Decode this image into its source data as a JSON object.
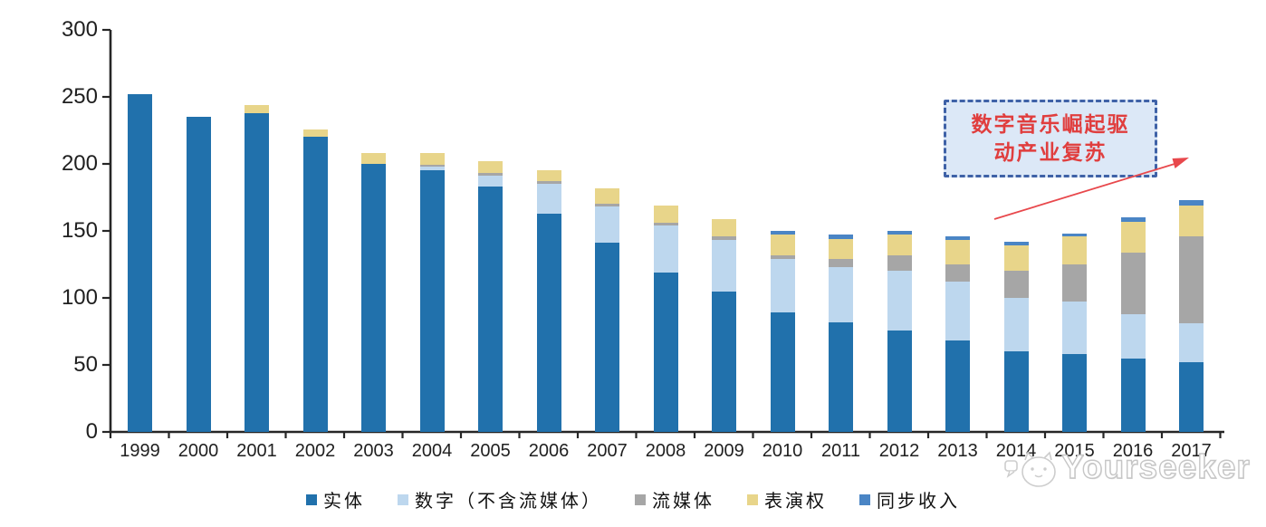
{
  "chart_data": {
    "type": "bar",
    "stacked": true,
    "title": "",
    "xlabel": "",
    "ylabel": "",
    "ylim": [
      0,
      300
    ],
    "yticks": [
      0,
      50,
      100,
      150,
      200,
      250,
      300
    ],
    "grid": false,
    "legend_position": "bottom",
    "categories": [
      "1999",
      "2000",
      "2001",
      "2002",
      "2003",
      "2004",
      "2005",
      "2006",
      "2007",
      "2008",
      "2009",
      "2010",
      "2011",
      "2012",
      "2013",
      "2014",
      "2015",
      "2016",
      "2017"
    ],
    "series": [
      {
        "name": "实体",
        "color": "#2171AC",
        "values": [
          252,
          235,
          238,
          220,
          200,
          195,
          183,
          163,
          141,
          119,
          105,
          89,
          82,
          76,
          68,
          60,
          58,
          55,
          52
        ]
      },
      {
        "name": "数字（不含流媒体）",
        "color": "#BDD7EE",
        "values": [
          0,
          0,
          0,
          0,
          0,
          3,
          8,
          22,
          27,
          35,
          38,
          40,
          41,
          44,
          44,
          40,
          39,
          33,
          29
        ]
      },
      {
        "name": "流媒体",
        "color": "#A6A6A6",
        "values": [
          0,
          0,
          0,
          0,
          0,
          1,
          2,
          2,
          2,
          2,
          3,
          3,
          6,
          12,
          13,
          20,
          28,
          46,
          65
        ]
      },
      {
        "name": "表演权",
        "color": "#E8D58A",
        "values": [
          0,
          0,
          6,
          6,
          8,
          9,
          9,
          8,
          12,
          13,
          13,
          15,
          15,
          15,
          18,
          19,
          21,
          23,
          23
        ]
      },
      {
        "name": "同步收入",
        "color": "#4A85C5",
        "values": [
          0,
          0,
          0,
          0,
          0,
          0,
          0,
          0,
          0,
          0,
          0,
          3,
          3,
          3,
          3,
          3,
          2,
          3,
          4
        ]
      }
    ]
  },
  "annotation": {
    "line1": "数字音乐崛起驱",
    "line2": "动产业复苏",
    "text_color": "#E03E3E",
    "box_fill": "#DCE8F7",
    "border_color": "#3F62A7",
    "arrow_color": "#E8484C"
  },
  "watermark": {
    "brand": "Yourseeker"
  }
}
